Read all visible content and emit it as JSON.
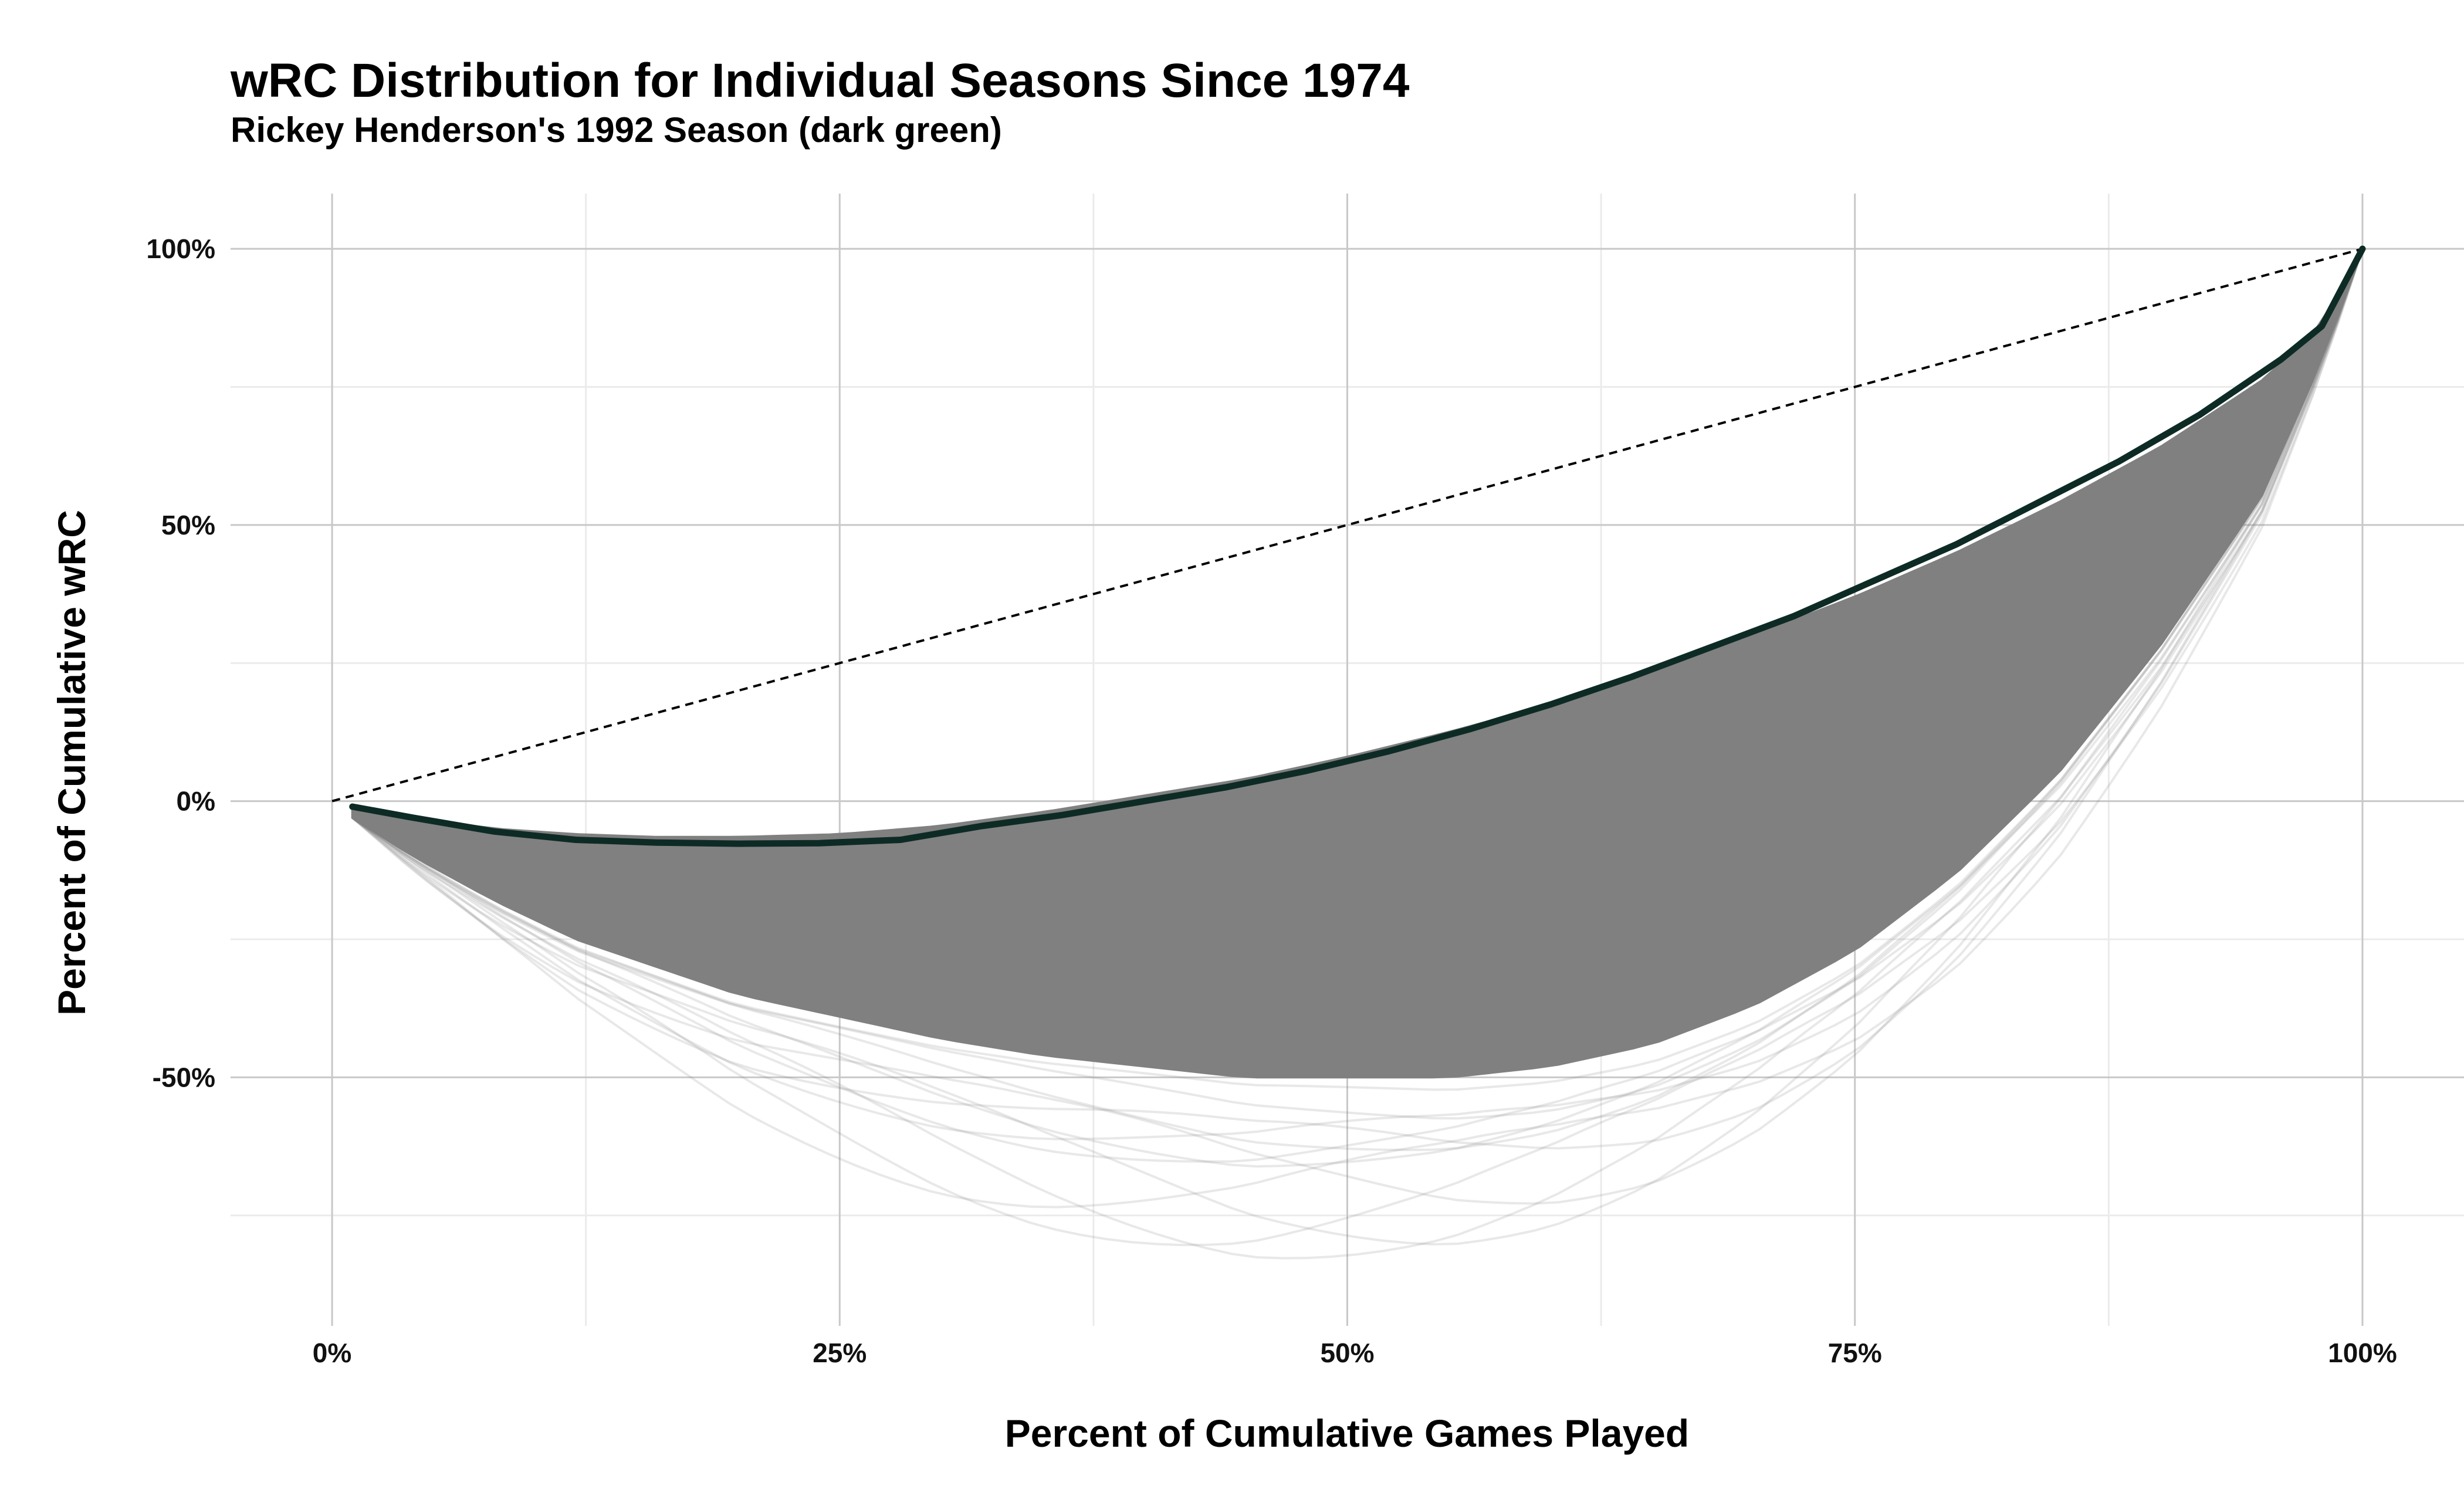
{
  "chart_data": {
    "type": "line",
    "title": "wRC Distribution for Individual Seasons Since 1974",
    "subtitle": "Rickey Henderson's 1992 Season (dark green)",
    "xlabel": "Percent of Cumulative Games Played",
    "ylabel": "Percent of Cumulative wRC",
    "xlim": [
      -0.05,
      1.05
    ],
    "ylim": [
      -0.95,
      1.1
    ],
    "x_ticks": [
      0,
      0.25,
      0.5,
      0.75,
      1
    ],
    "x_tick_labels": [
      "0%",
      "25%",
      "50%",
      "75%",
      "100%"
    ],
    "y_ticks": [
      -0.5,
      0,
      0.5,
      1
    ],
    "y_tick_labels": [
      "-50%",
      "0%",
      "50%",
      "100%"
    ],
    "grid": true,
    "colors": {
      "highlight": "#0d2b24",
      "background_series": "#808080",
      "grid_major": "#c8c8c8",
      "grid_minor": "#ebebeb",
      "reference_line": "#000000"
    },
    "reference_line": {
      "style": "dashed",
      "x": [
        0,
        1
      ],
      "y": [
        0,
        1
      ]
    },
    "highlight_series": {
      "x": [
        0.01,
        0.04,
        0.08,
        0.12,
        0.16,
        0.2,
        0.24,
        0.28,
        0.32,
        0.36,
        0.4,
        0.44,
        0.48,
        0.52,
        0.56,
        0.6,
        0.64,
        0.68,
        0.72,
        0.76,
        0.8,
        0.84,
        0.88,
        0.92,
        0.96,
        0.98,
        1.0
      ],
      "y": [
        -0.01,
        -0.03,
        -0.055,
        -0.07,
        -0.075,
        -0.077,
        -0.076,
        -0.07,
        -0.045,
        -0.025,
        0.0,
        0.025,
        0.055,
        0.09,
        0.13,
        0.175,
        0.225,
        0.28,
        0.335,
        0.4,
        0.465,
        0.54,
        0.615,
        0.7,
        0.8,
        0.86,
        1.0
      ]
    },
    "background_envelope": {
      "x": [
        0.01,
        0.04,
        0.08,
        0.12,
        0.16,
        0.2,
        0.25,
        0.3,
        0.35,
        0.4,
        0.45,
        0.5,
        0.55,
        0.6,
        0.65,
        0.7,
        0.75,
        0.8,
        0.85,
        0.9,
        0.95,
        0.98,
        1.0
      ],
      "upper": [
        -0.01,
        -0.03,
        -0.05,
        -0.06,
        -0.065,
        -0.065,
        -0.06,
        -0.045,
        -0.02,
        0.01,
        0.04,
        0.08,
        0.125,
        0.175,
        0.235,
        0.3,
        0.37,
        0.45,
        0.54,
        0.64,
        0.76,
        0.86,
        1.0
      ],
      "lower": [
        -0.03,
        -0.1,
        -0.18,
        -0.25,
        -0.3,
        -0.35,
        -0.39,
        -0.43,
        -0.46,
        -0.48,
        -0.5,
        -0.5,
        -0.5,
        -0.48,
        -0.44,
        -0.37,
        -0.27,
        -0.13,
        0.05,
        0.28,
        0.55,
        0.8,
        1.0
      ]
    },
    "annotations": []
  }
}
